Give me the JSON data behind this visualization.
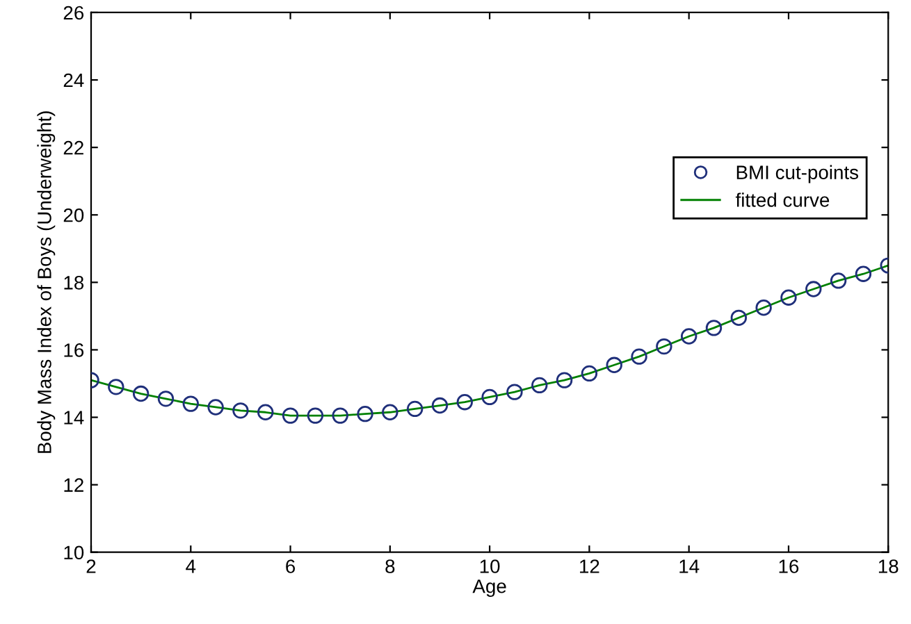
{
  "chart_data": {
    "type": "scatter",
    "xlabel": "Age",
    "ylabel": "Body Mass Index of Boys (Underweight)",
    "x": [
      2,
      2.5,
      3,
      3.5,
      4,
      4.5,
      5,
      5.5,
      6,
      6.5,
      7,
      7.5,
      8,
      8.5,
      9,
      9.5,
      10,
      10.5,
      11,
      11.5,
      12,
      12.5,
      13,
      13.5,
      14,
      14.5,
      15,
      15.5,
      16,
      16.5,
      17,
      17.5,
      18
    ],
    "series": [
      {
        "name": "BMI cut-points",
        "marker": "circle",
        "color": "#1f2f7a",
        "values": [
          15.1,
          14.9,
          14.7,
          14.55,
          14.4,
          14.3,
          14.2,
          14.15,
          14.05,
          14.05,
          14.05,
          14.1,
          14.15,
          14.25,
          14.35,
          14.45,
          14.6,
          14.75,
          14.95,
          15.1,
          15.3,
          15.55,
          15.8,
          16.1,
          16.4,
          16.65,
          16.95,
          17.25,
          17.55,
          17.8,
          18.05,
          18.25,
          18.5
        ]
      },
      {
        "name": "fitted curve",
        "type": "line",
        "marker": "none",
        "line_style": "solid",
        "color": "#008000",
        "values": [
          15.1,
          14.9,
          14.7,
          14.55,
          14.4,
          14.3,
          14.2,
          14.15,
          14.05,
          14.05,
          14.05,
          14.1,
          14.15,
          14.25,
          14.35,
          14.45,
          14.6,
          14.75,
          14.95,
          15.1,
          15.3,
          15.55,
          15.8,
          16.1,
          16.4,
          16.65,
          16.95,
          17.25,
          17.55,
          17.8,
          18.05,
          18.25,
          18.5
        ]
      }
    ],
    "xlim": [
      2,
      18
    ],
    "xticks": [
      2,
      4,
      6,
      8,
      10,
      12,
      14,
      16,
      18
    ],
    "ylim": [
      10,
      26
    ],
    "yticks": [
      10,
      12,
      14,
      16,
      18,
      20,
      22,
      24,
      26
    ],
    "grid": false,
    "legend": "right"
  }
}
